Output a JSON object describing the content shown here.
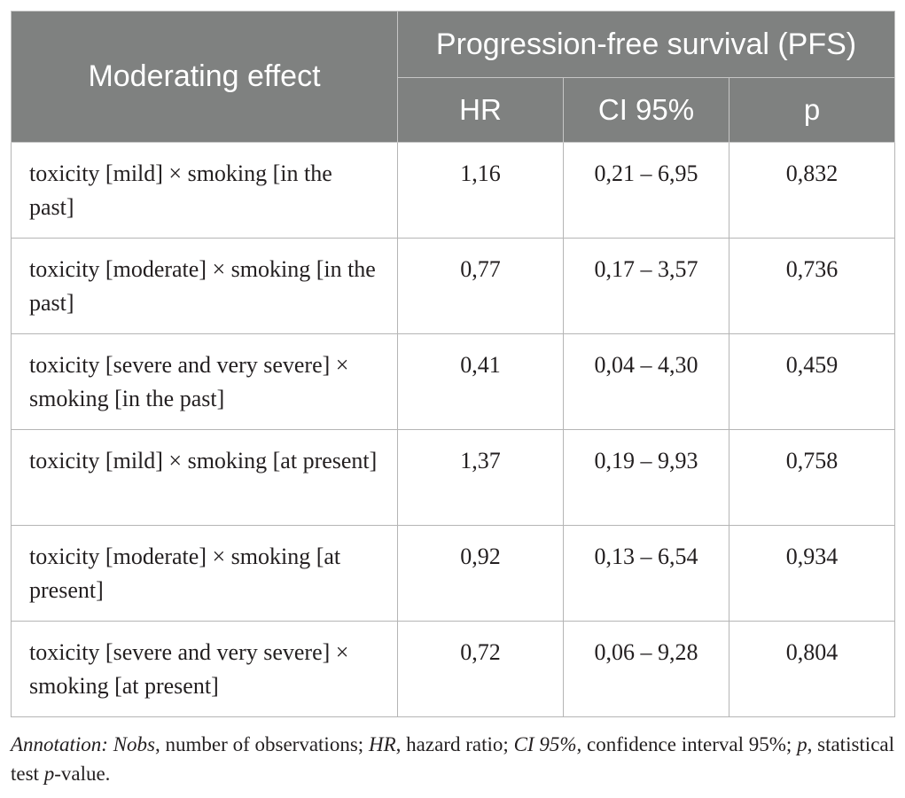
{
  "table": {
    "header": {
      "moderating_label": "Moderating effect",
      "group_label": "Progression-free survival (PFS)",
      "col_hr": "HR",
      "col_ci": "CI 95%",
      "col_p": "p"
    },
    "rows": [
      {
        "label": "toxicity [mild] × smoking [in the past]",
        "hr": "1,16",
        "ci": "0,21 – 6,95",
        "p": "0,832"
      },
      {
        "label": "toxicity [moderate] × smoking [in the past]",
        "hr": "0,77",
        "ci": "0,17 – 3,57",
        "p": "0,736"
      },
      {
        "label": "toxicity [severe and very severe] × smoking [in the past]",
        "hr": "0,41",
        "ci": "0,04 – 4,30",
        "p": "0,459"
      },
      {
        "label": "toxicity [mild] × smoking [at present]",
        "hr": "1,37",
        "ci": "0,19 – 9,93",
        "p": "0,758"
      },
      {
        "label": "toxicity [moderate] × smoking [at present]",
        "hr": "0,92",
        "ci": "0,13 – 6,54",
        "p": "0,934"
      },
      {
        "label": "toxicity [severe and very severe] × smoking [at present]",
        "hr": "0,72",
        "ci": "0,06 – 9,28",
        "p": "0,804"
      }
    ]
  },
  "annotation": {
    "prefix": "Annotation:",
    "nobs_term": "Nobs",
    "nobs_def": ", number of observations; ",
    "hr_term": "HR",
    "hr_def": ", hazard ratio; ",
    "ci_term": "CI 95%",
    "ci_def": ", confidence interval 95%; ",
    "p_term": "p",
    "p_def": ", statistical test ",
    "p_term2": "p",
    "p_def2": "-value."
  }
}
